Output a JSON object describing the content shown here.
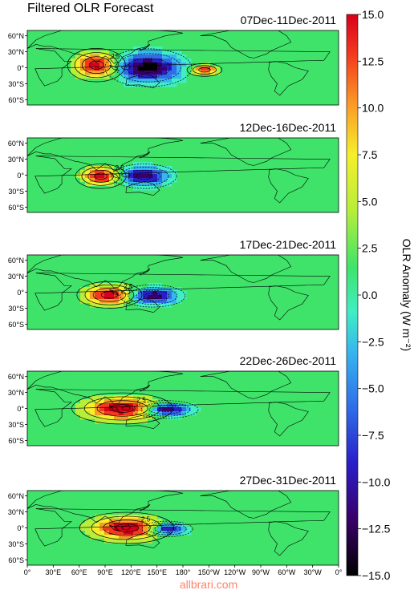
{
  "title": "Filtered OLR  Forecast",
  "watermark": "allbrari.com",
  "colorbar": {
    "label": "OLR Anomaly (W m⁻²)",
    "ticks": [
      "15.0",
      "12.5",
      "10.0",
      "7.5",
      "5.0",
      "2.5",
      "0.0",
      "−2.5",
      "−5.0",
      "−7.5",
      "−10.0",
      "−12.5",
      "−15.0"
    ],
    "range": [
      -15,
      15
    ],
    "colors": [
      "#000000",
      "#3a0069",
      "#2a1ec8",
      "#2f6ee8",
      "#36b6ee",
      "#40eec4",
      "#3fe36a",
      "#b6ee3a",
      "#f6ee2c",
      "#fb9a26",
      "#f3381e",
      "#d8001b"
    ]
  },
  "lat_labels": [
    "60°N",
    "30°N",
    "0°",
    "30°S",
    "60°S"
  ],
  "lon_labels": [
    "0°",
    "30°E",
    "60°E",
    "90°E",
    "120°E",
    "150°E",
    "180°",
    "150°W",
    "120°W",
    "90°W",
    "60°W",
    "30°W",
    "0°"
  ],
  "panels": [
    {
      "period": "07Dec-11Dec-2011",
      "contour_label": "2.5",
      "anomalies": [
        {
          "lon": 80,
          "lat": 5,
          "value": 14,
          "sx": 16,
          "sy": 15
        },
        {
          "lon": 140,
          "lat": 0,
          "value": -15,
          "sx": 24,
          "sy": 17
        },
        {
          "lon": 205,
          "lat": -4,
          "value": 12,
          "sx": 10,
          "sy": 6
        }
      ]
    },
    {
      "period": "12Dec-16Dec-2011",
      "contour_label": "2.5",
      "anomalies": [
        {
          "lon": 85,
          "lat": -2,
          "value": 14,
          "sx": 14,
          "sy": 11
        },
        {
          "lon": 135,
          "lat": -2,
          "value": -13,
          "sx": 18,
          "sy": 11
        }
      ]
    },
    {
      "period": "17Dec-21Dec-2011",
      "contour_label": "2.5",
      "anomalies": [
        {
          "lon": 95,
          "lat": -5,
          "value": 14,
          "sx": 18,
          "sy": 12
        },
        {
          "lon": 145,
          "lat": -7,
          "value": -13,
          "sx": 18,
          "sy": 10
        }
      ]
    },
    {
      "period": "22Dec-26Dec-2011",
      "contour_label": "2.5",
      "anomalies": [
        {
          "lon": 110,
          "lat": 0,
          "value": 15,
          "sx": 28,
          "sy": 14
        },
        {
          "lon": 160,
          "lat": -2,
          "value": -14,
          "sx": 18,
          "sy": 8
        }
      ]
    },
    {
      "period": "27Dec-31Dec-2011",
      "contour_label": "2.5",
      "anomalies": [
        {
          "lon": 115,
          "lat": 0,
          "value": 15,
          "sx": 26,
          "sy": 14
        },
        {
          "lon": 162,
          "lat": -2,
          "value": -13,
          "sx": 14,
          "sy": 7
        }
      ]
    }
  ]
}
